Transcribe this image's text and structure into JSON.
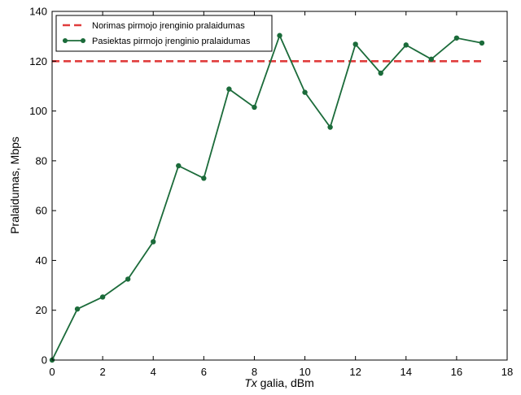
{
  "chart_data": {
    "type": "line",
    "xlabel": {
      "italic": "Tx",
      "rest": " galia, dBm"
    },
    "ylabel": "Pralaidumas, Mbps",
    "xlim": [
      0,
      18
    ],
    "ylim": [
      0,
      140
    ],
    "xticks": [
      0,
      2,
      4,
      6,
      8,
      10,
      12,
      14,
      16,
      18
    ],
    "yticks": [
      0,
      20,
      40,
      60,
      80,
      100,
      120,
      140
    ],
    "grid": false,
    "legend_position": "top-left",
    "series": [
      {
        "name": "Norimas pirmojo įrenginio pralaidumas",
        "style": "dashed",
        "color": "#e03c3c",
        "x": [
          0,
          17
        ],
        "y": [
          120,
          120
        ]
      },
      {
        "name": "Pasiektas pirmojo įrenginio pralaidumas",
        "style": "solid-markers",
        "color": "#1b6b3a",
        "x": [
          0,
          1,
          2,
          3,
          4,
          5,
          6,
          7,
          8,
          9,
          10,
          11,
          12,
          13,
          14,
          15,
          16,
          17
        ],
        "y": [
          0,
          20.5,
          25.3,
          32.5,
          47.5,
          78,
          73,
          108.8,
          101.5,
          130.3,
          107.5,
          93.5,
          126.8,
          115.2,
          126.5,
          120.8,
          129.3,
          127.3
        ]
      }
    ]
  }
}
